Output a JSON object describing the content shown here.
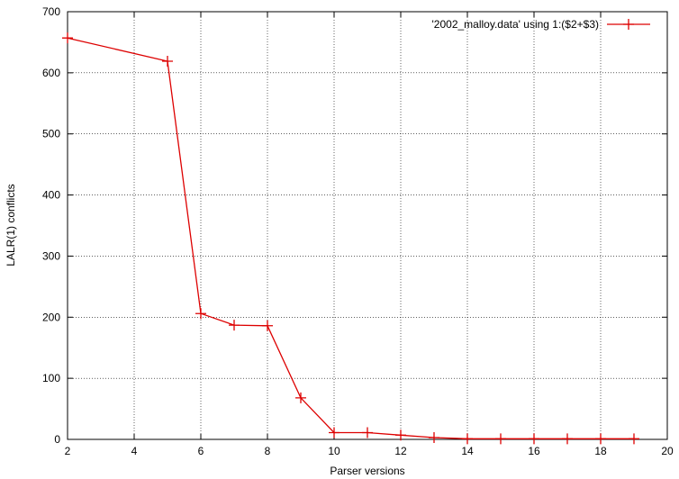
{
  "chart_data": {
    "type": "line",
    "title": "",
    "xlabel": "Parser versions",
    "ylabel": "LALR(1) conflicts",
    "xlim": [
      2,
      20
    ],
    "ylim": [
      0,
      700
    ],
    "x_ticks": [
      2,
      4,
      6,
      8,
      10,
      12,
      14,
      16,
      18,
      20
    ],
    "y_ticks": [
      0,
      100,
      200,
      300,
      400,
      500,
      600,
      700
    ],
    "grid": true,
    "legend_position": "top-right",
    "series": [
      {
        "name": "'2002_malloy.data' using 1:($2+$3)",
        "color": "#dd0000",
        "marker": "plus",
        "points": [
          {
            "x": 2,
            "y": 657
          },
          {
            "x": 5,
            "y": 619
          },
          {
            "x": 6,
            "y": 206
          },
          {
            "x": 7,
            "y": 187
          },
          {
            "x": 8,
            "y": 186
          },
          {
            "x": 9,
            "y": 68
          },
          {
            "x": 10,
            "y": 11
          },
          {
            "x": 11,
            "y": 11
          },
          {
            "x": 12,
            "y": 7
          },
          {
            "x": 13,
            "y": 3
          },
          {
            "x": 14,
            "y": 1
          },
          {
            "x": 15,
            "y": 1
          },
          {
            "x": 16,
            "y": 1
          },
          {
            "x": 17,
            "y": 1
          },
          {
            "x": 18,
            "y": 1
          },
          {
            "x": 19,
            "y": 1
          }
        ]
      }
    ]
  }
}
